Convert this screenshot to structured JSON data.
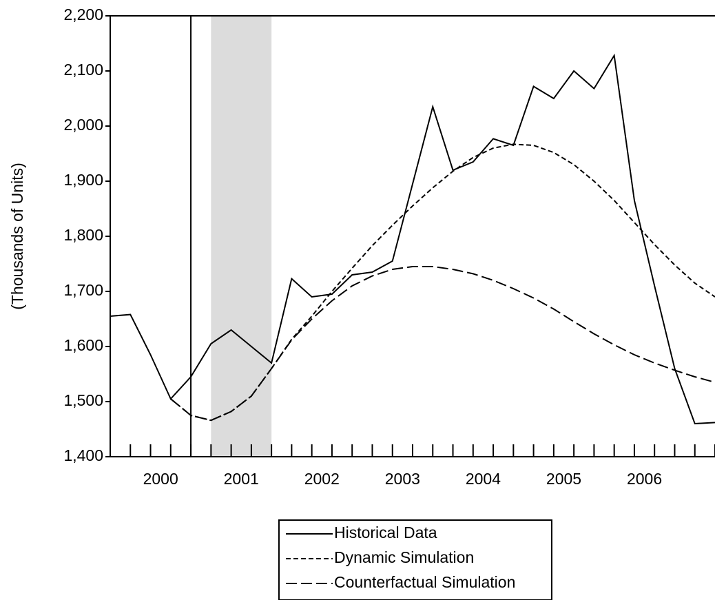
{
  "chart_data": {
    "type": "line",
    "y_label": "(Thousands of Units)",
    "x": [
      1999.75,
      2000.0,
      2000.25,
      2000.5,
      2000.75,
      2001.0,
      2001.25,
      2001.5,
      2001.75,
      2002.0,
      2002.25,
      2002.5,
      2002.75,
      2003.0,
      2003.25,
      2003.5,
      2003.75,
      2004.0,
      2004.25,
      2004.5,
      2004.75,
      2005.0,
      2005.25,
      2005.5,
      2005.75,
      2006.0,
      2006.25,
      2006.5,
      2006.75,
      2007.0,
      2007.25
    ],
    "series": [
      {
        "name": "Historical Data",
        "color": "#000000",
        "dash": "solid",
        "values": [
          1655,
          1658,
          1585,
          1505,
          1545,
          1605,
          1630,
          1600,
          1570,
          1723,
          1690,
          1695,
          1730,
          1735,
          1755,
          1895,
          2035,
          1920,
          1935,
          1977,
          1965,
          2072,
          2050,
          2100,
          2068,
          2128,
          1865,
          1710,
          1560,
          1460,
          1462
        ]
      },
      {
        "name": "Dynamic Simulation",
        "color": "#000000",
        "dash": "short",
        "values": [
          null,
          null,
          null,
          1505,
          1475,
          1466,
          1482,
          1510,
          1560,
          1613,
          1655,
          1700,
          1742,
          1783,
          1820,
          1855,
          1888,
          1918,
          1943,
          1960,
          1967,
          1965,
          1952,
          1930,
          1900,
          1865,
          1825,
          1785,
          1748,
          1715,
          1690
        ]
      },
      {
        "name": "Counterfactual Simulation",
        "color": "#000000",
        "dash": "long",
        "values": [
          null,
          null,
          null,
          1505,
          1475,
          1466,
          1482,
          1510,
          1560,
          1612,
          1650,
          1683,
          1710,
          1728,
          1740,
          1745,
          1745,
          1740,
          1732,
          1720,
          1705,
          1688,
          1668,
          1645,
          1623,
          1603,
          1585,
          1570,
          1557,
          1545,
          1535
        ]
      }
    ],
    "vlines": [
      2000.75
    ],
    "shaded": [
      [
        2001.0,
        2001.75
      ]
    ],
    "xlim": [
      1999.75,
      2007.25
    ],
    "xticks": [
      {
        "value": 2000.375,
        "label": "2000"
      },
      {
        "value": 2001.375,
        "label": "2001"
      },
      {
        "value": 2002.375,
        "label": "2002"
      },
      {
        "value": 2003.375,
        "label": "2003"
      },
      {
        "value": 2004.375,
        "label": "2004"
      },
      {
        "value": 2005.375,
        "label": "2005"
      },
      {
        "value": 2006.375,
        "label": "2006"
      }
    ],
    "ylim": [
      1400,
      2200
    ],
    "yticks": [
      {
        "value": 1400,
        "label": "1,400"
      },
      {
        "value": 1500,
        "label": "1,500"
      },
      {
        "value": 1600,
        "label": "1,600"
      },
      {
        "value": 1700,
        "label": "1,700"
      },
      {
        "value": 1800,
        "label": "1,800"
      },
      {
        "value": 1900,
        "label": "1,900"
      },
      {
        "value": 2000,
        "label": "2,000"
      },
      {
        "value": 2100,
        "label": "2,100"
      },
      {
        "value": 2200,
        "label": "2,200"
      }
    ],
    "legend": "bottom"
  }
}
